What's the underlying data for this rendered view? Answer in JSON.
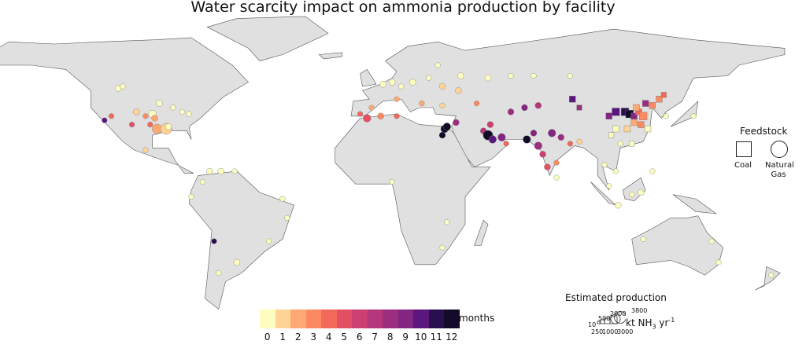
{
  "title": "Water scarcity impact on ammonia production by facility",
  "legend": {
    "feedstock_title": "Feedstock",
    "coal": "Coal",
    "natural_gas_1": "Natural",
    "natural_gas_2": "Gas",
    "colorbar_unit": "months",
    "colorbar_ticks": [
      "0",
      "1",
      "2",
      "3",
      "4",
      "5",
      "6",
      "7",
      "8",
      "9",
      "10",
      "11",
      "12"
    ],
    "colorbar_colors": [
      "#fcfdbf",
      "#fed395",
      "#fea973",
      "#fc8961",
      "#f4685c",
      "#e44f64",
      "#cc3f71",
      "#b5367a",
      "#9c2e7f",
      "#822681",
      "#5c167f",
      "#2a0f50",
      "#120a26",
      "#000004"
    ],
    "size_title": "Estimated production",
    "size_labels_top": [
      "500",
      "2000",
      "3800"
    ],
    "size_labels_bottom": [
      "10",
      "250",
      "1000",
      "3000"
    ],
    "size_unit_prefix": "kt NH",
    "size_unit_sub": "3",
    "size_unit_mid": " yr",
    "size_unit_sup": "-1"
  },
  "colors": {
    "land": "#e0e0e0",
    "border": "#555555",
    "ocean": "#ffffff"
  },
  "chart_data": {
    "type": "scatter-map",
    "fields": [
      "lon",
      "lat",
      "months",
      "production_kt",
      "feedstock"
    ],
    "points": [
      [
        -112,
        49,
        0,
        500,
        "gas"
      ],
      [
        -110,
        50,
        0,
        250,
        "gas"
      ],
      [
        -104,
        38,
        1,
        500,
        "gas"
      ],
      [
        -100,
        36,
        3,
        250,
        "gas"
      ],
      [
        -97,
        37,
        0,
        1000,
        "gas"
      ],
      [
        -94,
        42,
        0,
        500,
        "gas"
      ],
      [
        -88,
        40,
        0,
        250,
        "gas"
      ],
      [
        -84,
        38,
        0,
        250,
        "gas"
      ],
      [
        -81,
        37,
        0,
        250,
        "gas"
      ],
      [
        -96,
        35,
        2,
        500,
        "gas"
      ],
      [
        -98,
        32,
        4,
        250,
        "gas"
      ],
      [
        -95,
        30,
        2,
        2000,
        "gas"
      ],
      [
        -91,
        30,
        1,
        3000,
        "gas"
      ],
      [
        -90,
        31,
        0,
        500,
        "gas"
      ],
      [
        -118,
        34,
        10,
        250,
        "gas"
      ],
      [
        -106,
        32,
        5,
        250,
        "gas"
      ],
      [
        -115,
        36,
        4,
        250,
        "gas"
      ],
      [
        -100,
        20,
        1,
        250,
        "gas"
      ],
      [
        -72,
        10,
        0,
        500,
        "gas"
      ],
      [
        -67,
        10,
        0,
        500,
        "gas"
      ],
      [
        -61,
        10,
        0,
        250,
        "gas"
      ],
      [
        -75,
        5,
        0,
        250,
        "gas"
      ],
      [
        -80,
        -2,
        0,
        250,
        "gas"
      ],
      [
        -46,
        -23,
        0,
        250,
        "gas"
      ],
      [
        -38,
        -12,
        0,
        250,
        "gas"
      ],
      [
        -40,
        -3,
        0,
        250,
        "gas"
      ],
      [
        -70,
        -23,
        11,
        250,
        "gas"
      ],
      [
        -60,
        -33,
        0,
        500,
        "gas"
      ],
      [
        -68,
        -38,
        0,
        250,
        "gas"
      ],
      [
        -6,
        37,
        4,
        250,
        "gas"
      ],
      [
        -1,
        40,
        2,
        250,
        "gas"
      ],
      [
        -3,
        35,
        5,
        1000,
        "gas"
      ],
      [
        4,
        51,
        0,
        500,
        "gas"
      ],
      [
        8,
        52,
        0,
        500,
        "gas"
      ],
      [
        12,
        50,
        0,
        250,
        "gas"
      ],
      [
        17,
        52,
        0,
        500,
        "gas"
      ],
      [
        24,
        54,
        0,
        250,
        "gas"
      ],
      [
        30,
        50,
        1,
        500,
        "gas"
      ],
      [
        37,
        48,
        1,
        500,
        "gas"
      ],
      [
        38,
        55,
        0,
        500,
        "gas"
      ],
      [
        50,
        54,
        0,
        500,
        "gas"
      ],
      [
        45,
        42,
        3,
        250,
        "gas"
      ],
      [
        30,
        41,
        1,
        250,
        "gas"
      ],
      [
        10,
        44,
        2,
        250,
        "gas"
      ],
      [
        21,
        42,
        2,
        250,
        "gas"
      ],
      [
        28,
        60,
        0,
        250,
        "gas"
      ],
      [
        60,
        55,
        0,
        250,
        "gas"
      ],
      [
        70,
        55,
        0,
        250,
        "gas"
      ],
      [
        86,
        55,
        0,
        250,
        "gas"
      ],
      [
        31,
        30,
        12,
        1000,
        "gas"
      ],
      [
        32,
        31,
        12,
        1000,
        "gas"
      ],
      [
        30,
        27,
        12,
        500,
        "gas"
      ],
      [
        3,
        36,
        3,
        500,
        "gas"
      ],
      [
        10,
        36,
        4,
        250,
        "gas"
      ],
      [
        36,
        33,
        8,
        500,
        "gas"
      ],
      [
        48,
        29,
        7,
        500,
        "gas"
      ],
      [
        50,
        27,
        12,
        2000,
        "gas"
      ],
      [
        52,
        25,
        10,
        1000,
        "gas"
      ],
      [
        56,
        26,
        9,
        1000,
        "gas"
      ],
      [
        58,
        23,
        4,
        250,
        "gas"
      ],
      [
        51,
        32,
        6,
        500,
        "gas"
      ],
      [
        60,
        38,
        8,
        500,
        "gas"
      ],
      [
        66,
        40,
        9,
        500,
        "gas"
      ],
      [
        72,
        41,
        7,
        500,
        "gas"
      ],
      [
        67,
        25,
        12,
        1000,
        "gas"
      ],
      [
        70,
        28,
        9,
        500,
        "gas"
      ],
      [
        72,
        22,
        8,
        1000,
        "gas"
      ],
      [
        74,
        18,
        6,
        500,
        "gas"
      ],
      [
        76,
        12,
        5,
        500,
        "gas"
      ],
      [
        80,
        14,
        3,
        250,
        "gas"
      ],
      [
        78,
        28,
        9,
        1000,
        "gas"
      ],
      [
        82,
        26,
        8,
        500,
        "gas"
      ],
      [
        86,
        23,
        4,
        250,
        "gas"
      ],
      [
        90,
        24,
        1,
        250,
        "gas"
      ],
      [
        80,
        7,
        0,
        250,
        "gas"
      ],
      [
        87,
        44,
        10,
        500,
        "coal"
      ],
      [
        90,
        40,
        8,
        250,
        "coal"
      ],
      [
        103,
        36,
        9,
        500,
        "coal"
      ],
      [
        106,
        38,
        10,
        1000,
        "coal"
      ],
      [
        110,
        38,
        11,
        1000,
        "coal"
      ],
      [
        112,
        37,
        12,
        1000,
        "coal"
      ],
      [
        114,
        36,
        9,
        500,
        "coal"
      ],
      [
        116,
        38,
        4,
        500,
        "coal"
      ],
      [
        118,
        36,
        3,
        1000,
        "coal"
      ],
      [
        114,
        33,
        2,
        500,
        "coal"
      ],
      [
        117,
        32,
        3,
        500,
        "coal"
      ],
      [
        111,
        30,
        1,
        500,
        "coal"
      ],
      [
        106,
        30,
        0,
        500,
        "coal"
      ],
      [
        104,
        27,
        0,
        250,
        "coal"
      ],
      [
        120,
        30,
        0,
        500,
        "coal"
      ],
      [
        113,
        23,
        0,
        250,
        "coal"
      ],
      [
        108,
        23,
        0,
        250,
        "gas"
      ],
      [
        122,
        41,
        3,
        500,
        "coal"
      ],
      [
        125,
        44,
        3,
        500,
        "coal"
      ],
      [
        127,
        46,
        4,
        250,
        "coal"
      ],
      [
        119,
        42,
        8,
        500,
        "coal"
      ],
      [
        115,
        40,
        2,
        500,
        "coal"
      ],
      [
        128,
        36,
        0,
        250,
        "gas"
      ],
      [
        140,
        36,
        0,
        250,
        "gas"
      ],
      [
        101,
        13,
        0,
        250,
        "gas"
      ],
      [
        106,
        10,
        0,
        250,
        "gas"
      ],
      [
        103,
        3,
        0,
        250,
        "gas"
      ],
      [
        113,
        -1,
        0,
        250,
        "gas"
      ],
      [
        117,
        0,
        0,
        500,
        "gas"
      ],
      [
        107,
        -6,
        0,
        500,
        "gas"
      ],
      [
        122,
        10,
        0,
        250,
        "gas"
      ],
      [
        118,
        -22,
        0,
        250,
        "gas"
      ],
      [
        148,
        -23,
        0,
        250,
        "gas"
      ],
      [
        151,
        -33,
        0,
        250,
        "gas"
      ],
      [
        174,
        -39,
        0,
        250,
        "gas"
      ],
      [
        30,
        -26,
        0,
        250,
        "gas"
      ],
      [
        8,
        5,
        0,
        250,
        "gas"
      ],
      [
        32,
        -14,
        0,
        250,
        "gas"
      ]
    ]
  }
}
